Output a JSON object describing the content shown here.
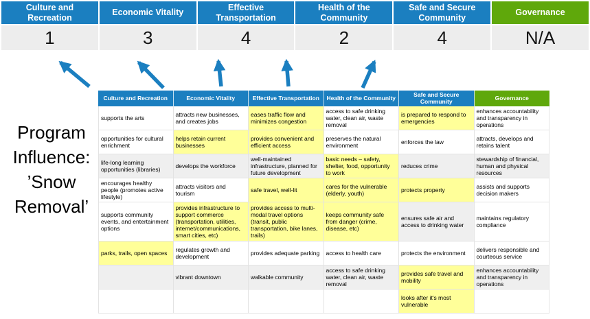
{
  "colors": {
    "blue": "#1B7FC0",
    "green": "#5FA80B",
    "yellow": "#FFFF99",
    "gray_row": "#EFEFEF",
    "score_bg": "#EDEDED",
    "arrow": "#1B7FC0"
  },
  "program_title": "Program Influence: ’Snow Removal’",
  "scoreboard": [
    {
      "category": "Culture and Recreation",
      "score": "1",
      "theme": "blue"
    },
    {
      "category": "Economic Vitality",
      "score": "3",
      "theme": "blue"
    },
    {
      "category": "Effective Transportation",
      "score": "4",
      "theme": "blue"
    },
    {
      "category": "Health of the Community",
      "score": "2",
      "theme": "blue"
    },
    {
      "category": "Safe and Secure Community",
      "score": "4",
      "theme": "blue"
    },
    {
      "category": "Governance",
      "score": "N/A",
      "theme": "green"
    }
  ],
  "matrix": {
    "headers": [
      {
        "label": "Culture and Recreation",
        "theme": "blue"
      },
      {
        "label": "Economic Vitality",
        "theme": "blue"
      },
      {
        "label": "Effective Transportation",
        "theme": "blue"
      },
      {
        "label": "Health of the Community",
        "theme": "blue"
      },
      {
        "label": "Safe and Secure Community",
        "theme": "blue"
      },
      {
        "label": "Governance",
        "theme": "green"
      }
    ],
    "rows": [
      [
        {
          "text": "supports the arts",
          "bg": "w"
        },
        {
          "text": "attracts new businesses, and creates jobs",
          "bg": "w"
        },
        {
          "text": "eases traffic flow and minimizes congestion",
          "bg": "y"
        },
        {
          "text": "access to safe drinking water, clean air, waste removal",
          "bg": "w"
        },
        {
          "text": "is prepared to respond to emergencies",
          "bg": "y"
        },
        {
          "text": "enhances accountability and transparency in operations",
          "bg": "w"
        }
      ],
      [
        {
          "text": "opportunities for cultural enrichment",
          "bg": "w"
        },
        {
          "text": "helps retain current businesses",
          "bg": "y"
        },
        {
          "text": "provides convenient and efficient access",
          "bg": "y"
        },
        {
          "text": "preserves the natural environment",
          "bg": "w"
        },
        {
          "text": "enforces the law",
          "bg": "w"
        },
        {
          "text": "attracts, develops and retains talent",
          "bg": "w"
        }
      ],
      [
        {
          "text": "life-long learning opportunities (libraries)",
          "bg": "g"
        },
        {
          "text": "develops the workforce",
          "bg": "g"
        },
        {
          "text": "well-maintained infrastructure, planned for future development",
          "bg": "g"
        },
        {
          "text": "basic needs – safety, shelter, food, opportunity to work",
          "bg": "y"
        },
        {
          "text": "reduces crime",
          "bg": "g"
        },
        {
          "text": "stewardship of financial, human and physical resources",
          "bg": "g"
        }
      ],
      [
        {
          "text": "encourages healthy people (promotes active lifestyle)",
          "bg": "w"
        },
        {
          "text": "attracts visitors and tourism",
          "bg": "w"
        },
        {
          "text": "safe travel, well-lit",
          "bg": "y"
        },
        {
          "text": "cares for the vulnerable (elderly, youth)",
          "bg": "y"
        },
        {
          "text": "protects property",
          "bg": "y"
        },
        {
          "text": "assists and supports decision makers",
          "bg": "w"
        }
      ],
      [
        {
          "text": "supports community events, and entertainment options",
          "bg": "w"
        },
        {
          "text": "provides infrastructure to support commerce (transportation, utilities, internet/communications, smart cities, etc)",
          "bg": "y"
        },
        {
          "text": "provides access to multi-modal travel options (transit, public transportation, bike lanes, trails)",
          "bg": "y"
        },
        {
          "text": "keeps community safe from danger (crime, disease, etc)",
          "bg": "y"
        },
        {
          "text": "ensures safe air and access to drinking water",
          "bg": "g"
        },
        {
          "text": "maintains regulatory compliance",
          "bg": "w"
        }
      ],
      [
        {
          "text": "parks, trails, open spaces",
          "bg": "y"
        },
        {
          "text": "regulates growth and development",
          "bg": "w"
        },
        {
          "text": "provides adequate parking",
          "bg": "w"
        },
        {
          "text": "access to health care",
          "bg": "w"
        },
        {
          "text": "protects the environment",
          "bg": "w"
        },
        {
          "text": "delivers responsible and courteous service",
          "bg": "w"
        }
      ],
      [
        {
          "text": "",
          "bg": "g"
        },
        {
          "text": "vibrant downtown",
          "bg": "g"
        },
        {
          "text": "walkable community",
          "bg": "g"
        },
        {
          "text": "access to safe drinking water, clean air, waste removal",
          "bg": "g"
        },
        {
          "text": "provides safe travel and mobility",
          "bg": "y"
        },
        {
          "text": "enhances accountability and transparency in operations",
          "bg": "g"
        }
      ],
      [
        {
          "text": "",
          "bg": "w"
        },
        {
          "text": "",
          "bg": "w"
        },
        {
          "text": "",
          "bg": "w"
        },
        {
          "text": "",
          "bg": "w"
        },
        {
          "text": "looks after it's most vulnerable",
          "bg": "y"
        },
        {
          "text": "",
          "bg": "w"
        }
      ]
    ]
  }
}
